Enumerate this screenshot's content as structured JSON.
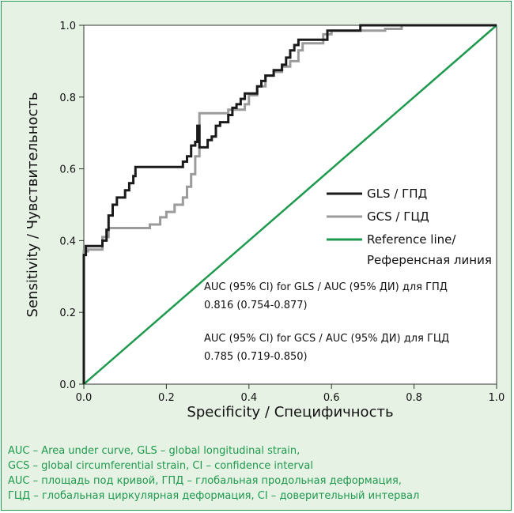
{
  "chart_data": {
    "type": "line",
    "xlabel": "Specificity / Специфичность",
    "ylabel": "Sensitivity / Чувствительность",
    "xlim": [
      0,
      1
    ],
    "ylim": [
      0,
      1
    ],
    "x_ticks": [
      "0.0",
      "0.2",
      "0.4",
      "0.6",
      "0.8",
      "1.0"
    ],
    "y_ticks": [
      "0.0",
      "0.2",
      "0.4",
      "0.6",
      "0.8",
      "1.0"
    ],
    "grid": false,
    "legend_position": "right",
    "series": [
      {
        "name": "GLS / ГПД",
        "color": "#1a1a1a",
        "points": [
          [
            0,
            0
          ],
          [
            0,
            0.36
          ],
          [
            0.005,
            0.36
          ],
          [
            0.005,
            0.385
          ],
          [
            0.045,
            0.385
          ],
          [
            0.045,
            0.4
          ],
          [
            0.055,
            0.4
          ],
          [
            0.055,
            0.43
          ],
          [
            0.06,
            0.43
          ],
          [
            0.06,
            0.47
          ],
          [
            0.07,
            0.47
          ],
          [
            0.07,
            0.5
          ],
          [
            0.08,
            0.5
          ],
          [
            0.08,
            0.52
          ],
          [
            0.1,
            0.52
          ],
          [
            0.1,
            0.54
          ],
          [
            0.11,
            0.54
          ],
          [
            0.11,
            0.56
          ],
          [
            0.12,
            0.56
          ],
          [
            0.12,
            0.58
          ],
          [
            0.125,
            0.58
          ],
          [
            0.125,
            0.605
          ],
          [
            0.24,
            0.605
          ],
          [
            0.24,
            0.62
          ],
          [
            0.25,
            0.62
          ],
          [
            0.25,
            0.635
          ],
          [
            0.26,
            0.635
          ],
          [
            0.26,
            0.665
          ],
          [
            0.27,
            0.665
          ],
          [
            0.27,
            0.675
          ],
          [
            0.275,
            0.675
          ],
          [
            0.275,
            0.72
          ],
          [
            0.28,
            0.72
          ],
          [
            0.28,
            0.66
          ],
          [
            0.3,
            0.66
          ],
          [
            0.3,
            0.68
          ],
          [
            0.31,
            0.68
          ],
          [
            0.31,
            0.69
          ],
          [
            0.32,
            0.69
          ],
          [
            0.32,
            0.72
          ],
          [
            0.33,
            0.72
          ],
          [
            0.33,
            0.73
          ],
          [
            0.35,
            0.73
          ],
          [
            0.35,
            0.75
          ],
          [
            0.36,
            0.75
          ],
          [
            0.36,
            0.77
          ],
          [
            0.37,
            0.77
          ],
          [
            0.37,
            0.78
          ],
          [
            0.38,
            0.78
          ],
          [
            0.38,
            0.795
          ],
          [
            0.39,
            0.795
          ],
          [
            0.39,
            0.81
          ],
          [
            0.42,
            0.81
          ],
          [
            0.42,
            0.83
          ],
          [
            0.43,
            0.83
          ],
          [
            0.43,
            0.845
          ],
          [
            0.44,
            0.845
          ],
          [
            0.44,
            0.86
          ],
          [
            0.46,
            0.86
          ],
          [
            0.46,
            0.875
          ],
          [
            0.48,
            0.875
          ],
          [
            0.48,
            0.89
          ],
          [
            0.49,
            0.89
          ],
          [
            0.49,
            0.91
          ],
          [
            0.5,
            0.91
          ],
          [
            0.5,
            0.93
          ],
          [
            0.51,
            0.93
          ],
          [
            0.51,
            0.945
          ],
          [
            0.52,
            0.945
          ],
          [
            0.52,
            0.96
          ],
          [
            0.59,
            0.96
          ],
          [
            0.59,
            0.985
          ],
          [
            0.67,
            0.985
          ],
          [
            0.67,
            1.0
          ],
          [
            1.0,
            1.0
          ]
        ]
      },
      {
        "name": "GCS / ГЦД",
        "color": "#9b9b9b",
        "points": [
          [
            0,
            0
          ],
          [
            0,
            0.37
          ],
          [
            0.01,
            0.37
          ],
          [
            0.01,
            0.375
          ],
          [
            0.045,
            0.375
          ],
          [
            0.045,
            0.41
          ],
          [
            0.06,
            0.41
          ],
          [
            0.06,
            0.435
          ],
          [
            0.16,
            0.435
          ],
          [
            0.16,
            0.445
          ],
          [
            0.185,
            0.445
          ],
          [
            0.185,
            0.465
          ],
          [
            0.2,
            0.465
          ],
          [
            0.2,
            0.48
          ],
          [
            0.22,
            0.48
          ],
          [
            0.22,
            0.5
          ],
          [
            0.24,
            0.5
          ],
          [
            0.24,
            0.52
          ],
          [
            0.25,
            0.52
          ],
          [
            0.25,
            0.55
          ],
          [
            0.26,
            0.55
          ],
          [
            0.26,
            0.585
          ],
          [
            0.27,
            0.585
          ],
          [
            0.27,
            0.635
          ],
          [
            0.28,
            0.635
          ],
          [
            0.28,
            0.755
          ],
          [
            0.35,
            0.755
          ],
          [
            0.35,
            0.765
          ],
          [
            0.39,
            0.765
          ],
          [
            0.39,
            0.78
          ],
          [
            0.4,
            0.78
          ],
          [
            0.4,
            0.805
          ],
          [
            0.42,
            0.805
          ],
          [
            0.42,
            0.83
          ],
          [
            0.44,
            0.83
          ],
          [
            0.44,
            0.86
          ],
          [
            0.46,
            0.86
          ],
          [
            0.46,
            0.87
          ],
          [
            0.48,
            0.87
          ],
          [
            0.48,
            0.885
          ],
          [
            0.5,
            0.885
          ],
          [
            0.5,
            0.9
          ],
          [
            0.52,
            0.9
          ],
          [
            0.52,
            0.93
          ],
          [
            0.53,
            0.93
          ],
          [
            0.53,
            0.95
          ],
          [
            0.58,
            0.95
          ],
          [
            0.58,
            0.975
          ],
          [
            0.6,
            0.975
          ],
          [
            0.6,
            0.985
          ],
          [
            0.73,
            0.985
          ],
          [
            0.73,
            0.99
          ],
          [
            0.77,
            0.99
          ],
          [
            0.77,
            1.0
          ],
          [
            1.0,
            1.0
          ]
        ]
      },
      {
        "name": "Reference line/",
        "name_line2": "Референсная линия",
        "color": "#1e9a4e",
        "points": [
          [
            0,
            0
          ],
          [
            1,
            1
          ]
        ]
      }
    ],
    "annotations": [
      {
        "line1": "AUC (95% CI) for GLS / AUC (95% ДИ) для ГПД",
        "line2": "0.816 (0.754-0.877)"
      },
      {
        "line1": "AUC (95% CI) for GCS / AUC (95% ДИ) для ГЦД",
        "line2": "0.785 (0.719-0.850)"
      }
    ]
  },
  "footnotes": [
    "AUC – Area under curve, GLS – global longitudinal strain,",
    "GCS – global circumferential strain, CI – confidence interval",
    "AUC – площадь под кривой, ГПД – глобальная продольная деформация,",
    "ГЦД – глобальная циркулярная деформация, CI – доверительный интервал"
  ]
}
